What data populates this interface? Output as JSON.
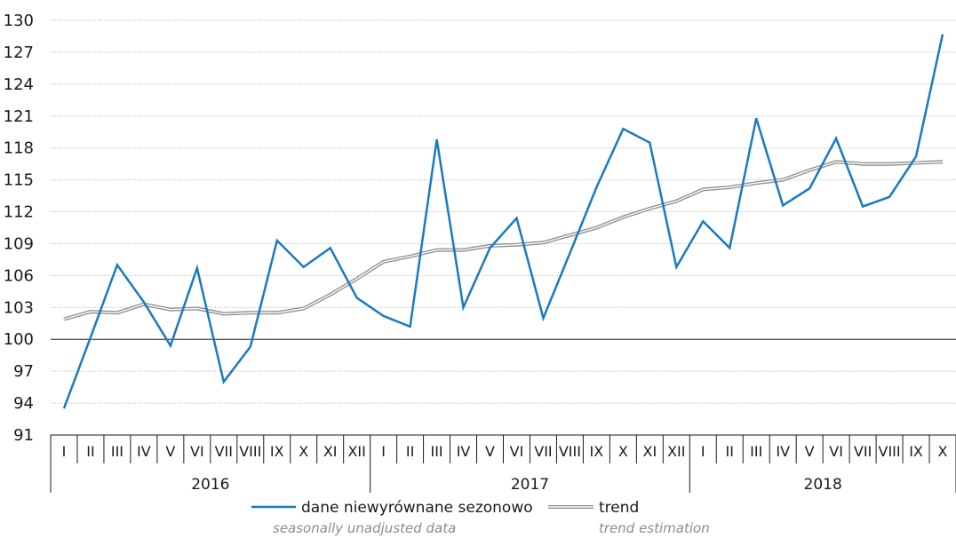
{
  "chart_data": {
    "type": "line",
    "ylim": [
      91,
      130
    ],
    "yticks": [
      91,
      94,
      97,
      100,
      103,
      106,
      109,
      112,
      115,
      118,
      121,
      124,
      127,
      130
    ],
    "categories": [
      "I",
      "II",
      "III",
      "IV",
      "V",
      "VI",
      "VII",
      "VIII",
      "IX",
      "X",
      "XI",
      "XII",
      "I",
      "II",
      "III",
      "IV",
      "V",
      "VI",
      "VII",
      "VIII",
      "IX",
      "X",
      "XI",
      "XII",
      "I",
      "II",
      "III",
      "IV",
      "V",
      "VI",
      "VII",
      "VIII",
      "IX",
      "X"
    ],
    "years": [
      {
        "label": "2016",
        "months": 12
      },
      {
        "label": "2017",
        "months": 12
      },
      {
        "label": "2018",
        "months": 10
      }
    ],
    "series": [
      {
        "name": "dane niewyrównane sezonowo",
        "name_en": "seasonally unadjusted data",
        "color": "#1a7ac0",
        "values": [
          93.5,
          100.2,
          107.0,
          103.5,
          99.4,
          106.7,
          96.0,
          99.3,
          109.3,
          106.8,
          108.6,
          103.9,
          102.2,
          101.2,
          118.8,
          103.0,
          108.6,
          111.4,
          102.0,
          108.1,
          114.3,
          119.8,
          118.5,
          106.8,
          111.1,
          108.6,
          120.8,
          112.6,
          114.2,
          118.9,
          112.5,
          113.4,
          117.2,
          128.7
        ]
      },
      {
        "name": "trend",
        "name_en": "trend estimation",
        "color": "#8c8c8c",
        "values": [
          101.9,
          102.6,
          102.5,
          103.3,
          102.8,
          102.9,
          102.4,
          102.5,
          102.5,
          102.9,
          104.2,
          105.7,
          107.3,
          107.8,
          108.4,
          108.4,
          108.8,
          108.9,
          109.1,
          109.8,
          110.5,
          111.5,
          112.3,
          113.0,
          114.1,
          114.3,
          114.7,
          115.0,
          115.9,
          116.7,
          116.5,
          116.5,
          116.6,
          116.7
        ]
      }
    ]
  }
}
